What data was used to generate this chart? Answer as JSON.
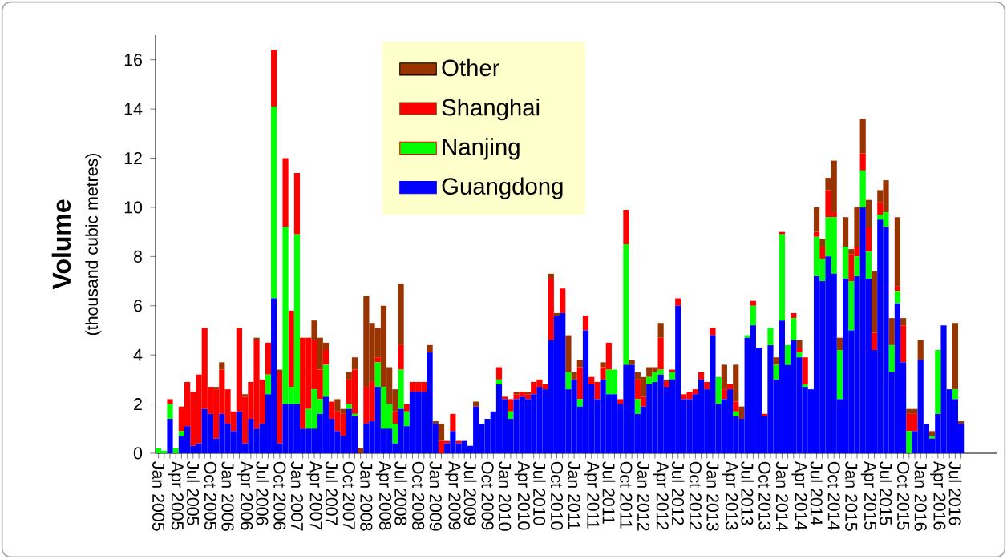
{
  "chart_data": {
    "type": "bar",
    "stacked": true,
    "ylabel": "Volume",
    "annotations": [
      "(thousand cubic metres)"
    ],
    "categories": [
      "Jan 2005",
      null,
      null,
      "Apr 2005",
      null,
      null,
      "Jul 2005",
      null,
      null,
      "Oct 2005",
      null,
      null,
      "Jan 2006",
      null,
      null,
      "Apr 2006",
      null,
      null,
      "Jul 2006",
      null,
      null,
      "Oct 2006",
      null,
      null,
      "Jan 2007",
      null,
      null,
      "Apr 2007",
      null,
      null,
      "Jul 2007",
      null,
      null,
      "Oct 2007",
      null,
      null,
      "Jan 2008",
      null,
      null,
      "Apr 2008",
      null,
      null,
      "Jul 2008",
      null,
      null,
      "Oct 2008",
      null,
      null,
      "Jan 2009",
      null,
      null,
      "Apr 2009",
      null,
      null,
      "Jul 2009",
      null,
      null,
      "Oct 2009",
      null,
      null,
      "Jan 2010",
      null,
      null,
      "Apr 2010",
      null,
      null,
      "Jul 2010",
      null,
      null,
      "Oct 2010",
      null,
      null,
      "Jan 2011",
      null,
      null,
      "Apr 2011",
      null,
      null,
      "Jul 2011",
      null,
      null,
      "Oct 2011",
      null,
      null,
      "Jan 2012",
      null,
      null,
      "Apr 2012",
      null,
      null,
      "Jul 2012",
      null,
      null,
      "Oct 2012",
      null,
      null,
      "Jan 2013",
      null,
      null,
      "Apr 2013",
      null,
      null,
      "Jul 2013",
      null,
      null,
      "Oct 2013",
      null,
      null,
      "Jan 2014",
      null,
      null,
      "Apr 2014",
      null,
      null,
      "Jul 2014",
      null,
      null,
      "Oct 2014",
      null,
      null,
      "Jan 2015",
      null,
      null,
      "Apr 2015",
      null,
      null,
      "Jul 2015",
      null,
      null,
      "Oct 2015",
      null,
      null,
      "Jan 2016",
      null,
      null,
      "Apr 2016",
      null,
      null,
      "Jul 2016",
      null
    ],
    "series": [
      {
        "name": "Guangdong",
        "color": "#0000ff",
        "values": [
          0,
          0,
          1.4,
          0,
          0.7,
          1.1,
          0.3,
          0.4,
          1.8,
          1.6,
          0.6,
          1.6,
          1.2,
          0.9,
          1.7,
          0.4,
          1.4,
          1.0,
          1.2,
          2.4,
          6.3,
          0.4,
          2.0,
          2.0,
          2.0,
          1.0,
          1.0,
          1.0,
          1.6,
          2.3,
          1.4,
          0.9,
          0.7,
          1.8,
          1.5,
          0,
          1.2,
          1.3,
          2.7,
          1.0,
          1.0,
          0.4,
          1.8,
          1.1,
          2.5,
          2.5,
          2.5,
          4.1,
          1.2,
          0,
          0.4,
          0.9,
          0.4,
          0.5,
          0.3,
          1.9,
          1.2,
          1.4,
          1.7,
          2.8,
          2.2,
          1.4,
          2.2,
          2.3,
          2.2,
          2.4,
          2.7,
          2.6,
          4.6,
          5.6,
          5.7,
          2.6,
          3.0,
          1.9,
          5.0,
          2.8,
          2.2,
          3.0,
          2.4,
          2.4,
          2.0,
          3.6,
          3.6,
          1.6,
          1.9,
          2.8,
          2.9,
          3.2,
          2.7,
          3.0,
          6.0,
          2.2,
          2.2,
          2.4,
          3.0,
          2.6,
          4.8,
          2.0,
          2.2,
          2.6,
          1.5,
          1.4,
          4.7,
          5.2,
          4.3,
          1.5,
          4.4,
          3.0,
          5.4,
          3.6,
          4.6,
          3.9,
          2.7,
          2.6,
          7.2,
          7.0,
          8.0,
          7.3,
          2.2,
          7.1,
          5.0,
          7.2,
          10.0,
          7.1,
          4.2,
          9.5,
          9.2,
          3.3,
          6.1,
          3.7,
          0,
          0.9,
          3.8,
          1.2,
          0.6,
          1.6,
          5.2,
          2.6,
          2.2,
          1.2
        ]
      },
      {
        "name": "Nanjing",
        "color": "#00ff00",
        "values": [
          0.2,
          0.1,
          0.6,
          0.2,
          0.2,
          0,
          0,
          0,
          0,
          0,
          0,
          0,
          0,
          0,
          0,
          0,
          0,
          0,
          0,
          0.8,
          7.8,
          0,
          7.2,
          0.7,
          6.9,
          0,
          0.8,
          1.6,
          0.6,
          1.3,
          0,
          0,
          0,
          0.2,
          0.1,
          0,
          0,
          0,
          1.0,
          1.7,
          1.0,
          0.8,
          1.6,
          0.6,
          0,
          0,
          0,
          0,
          0,
          0,
          0,
          0,
          0,
          0,
          0,
          0,
          0,
          0,
          0,
          0.2,
          0,
          0.3,
          0,
          0,
          0,
          0,
          0,
          0,
          0,
          0,
          0,
          0.7,
          0,
          0.3,
          0,
          0,
          0,
          0,
          1.0,
          1.0,
          0,
          4.9,
          0,
          0.6,
          0,
          0.3,
          0.4,
          0.2,
          0,
          0.3,
          0,
          0,
          0,
          0,
          0,
          0,
          0,
          1.1,
          0,
          0,
          0.2,
          0,
          0.1,
          0.8,
          0,
          0,
          0.7,
          0.6,
          3.5,
          0.8,
          0.9,
          0.2,
          0.1,
          0,
          1.6,
          0.9,
          1.6,
          2.3,
          2.0,
          1.3,
          2.0,
          0.8,
          1.5,
          1.1,
          0,
          0.2,
          0.6,
          1.1,
          0.5,
          0,
          0.9,
          0,
          0,
          0,
          0.1,
          2.6,
          0,
          0,
          0.4,
          0
        ]
      },
      {
        "name": "Shanghai",
        "color": "#ff0000",
        "values": [
          0,
          0,
          0.2,
          0,
          1.0,
          1.8,
          2.2,
          2.8,
          3.3,
          1.1,
          2.0,
          1.8,
          1.4,
          0.8,
          3.4,
          1.9,
          1.5,
          3.6,
          1.8,
          1.3,
          2.3,
          2.9,
          2.8,
          3.1,
          2.5,
          3.7,
          2.9,
          2.0,
          1.2,
          0.6,
          0.7,
          0.8,
          0.9,
          1.0,
          1.8,
          0,
          1.5,
          1.6,
          0.2,
          0,
          0,
          0.5,
          1.0,
          0.3,
          0.4,
          0.4,
          0.4,
          0,
          0,
          0.5,
          0.1,
          0.7,
          0.1,
          0,
          0,
          0,
          0,
          0,
          0,
          0.5,
          0.1,
          0.5,
          0.2,
          0.2,
          0.2,
          0.5,
          0.3,
          0.2,
          2.5,
          0,
          1.0,
          0,
          0,
          1.3,
          0.6,
          0.3,
          0.7,
          0.5,
          1.1,
          0,
          0.2,
          1.4,
          0,
          0.8,
          0.4,
          0,
          0,
          1.3,
          0.2,
          0.1,
          0.3,
          0.2,
          0.3,
          0.2,
          0.3,
          0.3,
          0.3,
          0,
          0.4,
          0.2,
          0.4,
          0,
          0,
          0.2,
          0,
          0.1,
          0,
          0,
          0.1,
          0,
          0.2,
          0.2,
          1.1,
          0,
          0.2,
          0.5,
          1.1,
          0.2,
          0,
          0,
          1.1,
          0.4,
          0.7,
          1.0,
          0.7,
          0.5,
          0,
          0,
          0.2,
          1.5,
          0.7,
          0.7,
          0,
          0,
          0,
          0,
          0,
          0,
          0,
          0
        ]
      },
      {
        "name": "Other",
        "color": "#993300",
        "values": [
          0,
          0,
          0,
          0,
          0,
          0,
          0,
          0,
          0,
          0,
          0.1,
          0.3,
          0,
          0,
          0,
          0.1,
          0,
          0.1,
          0,
          0,
          0,
          0.1,
          0,
          0,
          0,
          0,
          0,
          0.8,
          1.3,
          0.3,
          0,
          0.5,
          0.2,
          0.3,
          0.5,
          0.2,
          3.7,
          2.4,
          1.2,
          3.3,
          1.5,
          0.9,
          2.5,
          0,
          0,
          0,
          0,
          0.3,
          0.1,
          0.7,
          0,
          0,
          0,
          0,
          0,
          0.2,
          0,
          0,
          0,
          0,
          0,
          0,
          0.1,
          0,
          0.1,
          0,
          0,
          0,
          0.2,
          0.1,
          0,
          1.5,
          0.3,
          0.3,
          0,
          0,
          0,
          0.2,
          0,
          0,
          0,
          0,
          0.2,
          0.3,
          0.8,
          0.4,
          0.2,
          0.6,
          0.1,
          0,
          0,
          0,
          0,
          0,
          0,
          0,
          0,
          0,
          1.0,
          0,
          1.5,
          0.5,
          0,
          0,
          0,
          0,
          0,
          0.3,
          0,
          0,
          0,
          0.3,
          0,
          0,
          1.0,
          0.3,
          0.5,
          2.1,
          0.5,
          1.2,
          0.2,
          1.6,
          1.4,
          1.1,
          2.5,
          0.5,
          1.3,
          1.1,
          2.8,
          0.3,
          0.2,
          0.2,
          0.8,
          0,
          0.2,
          0,
          0,
          0,
          2.7,
          0.1
        ]
      }
    ],
    "ylim": [
      0,
      17
    ],
    "yticks": [
      0,
      2,
      4,
      6,
      8,
      10,
      12,
      14,
      16
    ],
    "legend": "top"
  }
}
